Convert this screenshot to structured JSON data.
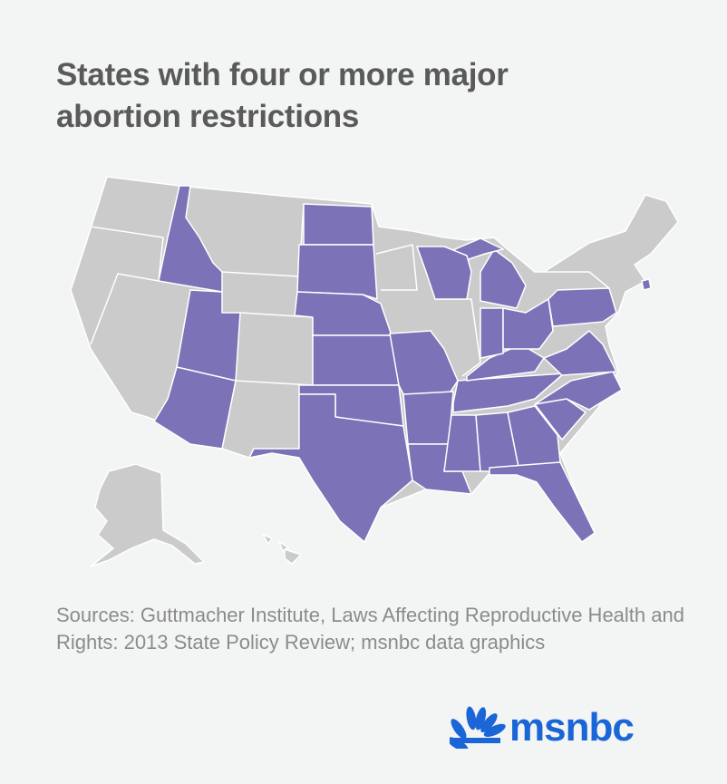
{
  "header": {
    "title": "States with four or more major abortion restrictions"
  },
  "footer": {
    "sources": "Sources: Guttmacher Institute, Laws Affecting Reproductive Health and Rights: 2013 State Policy Review; msnbc data graphics",
    "logo": "msnbc"
  }
}
